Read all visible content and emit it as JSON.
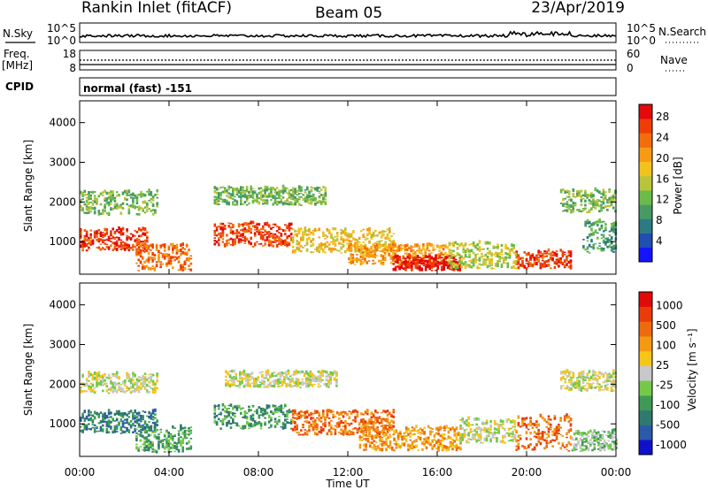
{
  "header": {
    "title": "Rankin Inlet (fitACF)",
    "beam": "Beam 05",
    "date": "23/Apr/2019"
  },
  "nsky": {
    "label": "N.Sky",
    "ticks": [
      "10^5",
      "10^0"
    ],
    "right_label": "N.Search",
    "right_ticks": [
      "10^5",
      "10^0"
    ]
  },
  "freq": {
    "label_line1": "Freq.",
    "label_line2": "[MHz]",
    "ticks": [
      "18",
      "8"
    ],
    "right_label": "Nave",
    "right_ticks": [
      "60",
      "0"
    ]
  },
  "cpid": {
    "label": "CPID",
    "value": "normal (fast) -151"
  },
  "x_axis": {
    "label": "Time UT",
    "ticks": [
      "00:00",
      "04:00",
      "08:00",
      "12:00",
      "16:00",
      "20:00",
      "00:00"
    ]
  },
  "chart_data": [
    {
      "type": "heatmap",
      "name": "power",
      "ylabel": "Slant Range [km]",
      "y_ticks": [
        "1000",
        "2000",
        "3000",
        "4000"
      ],
      "ylim": [
        180,
        4550
      ],
      "xlim": [
        0,
        24
      ],
      "colorbar": {
        "label": "Power [dB]",
        "ticks": [
          "4",
          "8",
          "12",
          "16",
          "20",
          "24",
          "28"
        ],
        "colors": [
          "#1414ff",
          "#1f4fb0",
          "#2c7a83",
          "#479a66",
          "#6cbb4a",
          "#b9c43a",
          "#f2c21e",
          "#f79b16",
          "#f36d0c",
          "#ef3d08",
          "#e20a0a"
        ]
      },
      "echo_bands": [
        {
          "t0": 0.0,
          "t1": 3.0,
          "r0": 750,
          "r1": 1300,
          "level": 9
        },
        {
          "t0": 0.0,
          "t1": 3.5,
          "r0": 1650,
          "r1": 2250,
          "level": 4
        },
        {
          "t0": 2.5,
          "t1": 5.0,
          "r0": 250,
          "r1": 900,
          "level": 8
        },
        {
          "t0": 6.0,
          "t1": 9.5,
          "r0": 850,
          "r1": 1450,
          "level": 9
        },
        {
          "t0": 6.0,
          "t1": 11.0,
          "r0": 1900,
          "r1": 2350,
          "level": 4
        },
        {
          "t0": 9.5,
          "t1": 14.0,
          "r0": 700,
          "r1": 1300,
          "level": 6
        },
        {
          "t0": 12.0,
          "t1": 16.5,
          "r0": 400,
          "r1": 900,
          "level": 7
        },
        {
          "t0": 14.0,
          "t1": 17.0,
          "r0": 250,
          "r1": 600,
          "level": 10
        },
        {
          "t0": 19.5,
          "t1": 22.0,
          "r0": 300,
          "r1": 750,
          "level": 9
        },
        {
          "t0": 16.5,
          "t1": 19.5,
          "r0": 300,
          "r1": 950,
          "level": 5
        },
        {
          "t0": 21.5,
          "t1": 24.0,
          "r0": 1700,
          "r1": 2300,
          "level": 4
        },
        {
          "t0": 22.5,
          "t1": 24.0,
          "r0": 700,
          "r1": 1500,
          "level": 3
        }
      ]
    },
    {
      "type": "heatmap",
      "name": "velocity",
      "ylabel": "Slant Range [km]",
      "y_ticks": [
        "1000",
        "2000",
        "3000",
        "4000"
      ],
      "ylim": [
        180,
        4550
      ],
      "xlim": [
        0,
        24
      ],
      "colorbar": {
        "label": "Velocity [m s⁻¹]",
        "ticks": [
          "1000",
          "500",
          "100",
          "25",
          "-25",
          "-100",
          "-500",
          "-1000"
        ],
        "colors": [
          "#1010cc",
          "#2b5aa8",
          "#2f7a6e",
          "#3f9a55",
          "#74c94a",
          "#c8c8c8",
          "#f5c518",
          "#f39a12",
          "#ee6a0e",
          "#e93c0a",
          "#e00a0a"
        ]
      },
      "echo_bands": [
        {
          "t0": 0.0,
          "t1": 3.5,
          "r0": 750,
          "r1": 1300,
          "level": 2
        },
        {
          "t0": 0.0,
          "t1": 3.5,
          "r0": 1750,
          "r1": 2250,
          "level": 5
        },
        {
          "t0": 2.5,
          "t1": 5.0,
          "r0": 250,
          "r1": 900,
          "level": 3
        },
        {
          "t0": 6.0,
          "t1": 9.5,
          "r0": 850,
          "r1": 1450,
          "level": 3
        },
        {
          "t0": 6.5,
          "t1": 11.5,
          "r0": 1900,
          "r1": 2300,
          "level": 5
        },
        {
          "t0": 9.5,
          "t1": 14.0,
          "r0": 700,
          "r1": 1300,
          "level": 8
        },
        {
          "t0": 12.5,
          "t1": 17.0,
          "r0": 300,
          "r1": 900,
          "level": 7
        },
        {
          "t0": 17.0,
          "t1": 19.5,
          "r0": 500,
          "r1": 1100,
          "level": 5
        },
        {
          "t0": 19.5,
          "t1": 22.0,
          "r0": 300,
          "r1": 1200,
          "level": 8
        },
        {
          "t0": 21.5,
          "t1": 24.0,
          "r0": 1800,
          "r1": 2300,
          "level": 5
        },
        {
          "t0": 22.0,
          "t1": 24.0,
          "r0": 300,
          "r1": 800,
          "level": 4
        }
      ]
    }
  ]
}
